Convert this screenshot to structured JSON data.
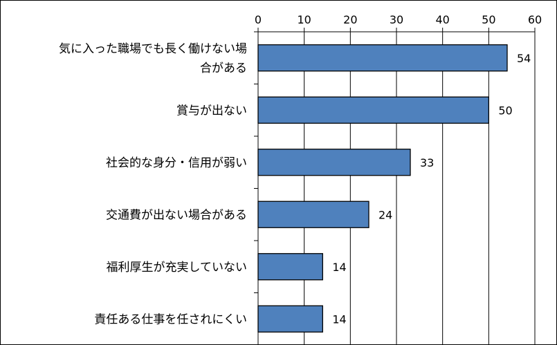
{
  "chart_data": {
    "type": "bar",
    "orientation": "horizontal",
    "title": "",
    "xlabel": "",
    "ylabel": "",
    "xlim": [
      0,
      60
    ],
    "x_ticks": [
      0,
      10,
      20,
      30,
      40,
      50,
      60
    ],
    "x_axis_position": "top",
    "grid": true,
    "legend": "none",
    "bar_color": "#4F81BD",
    "bar_edge_color": "#000000",
    "categories": [
      "気に入った職場でも長く働けない場合がある",
      "賞与が出ない",
      "社会的な身分・信用が弱い",
      "交通費が出ない場合がある",
      "福利厚生が充実していない",
      "責任ある仕事を任されにくい"
    ],
    "category_label_lines": [
      [
        "気に入った職場でも長く働けない場",
        "合がある"
      ],
      [
        "賞与が出ない"
      ],
      [
        "社会的な身分・信用が弱い"
      ],
      [
        "交通費が出ない場合がある"
      ],
      [
        "福利厚生が充実していない"
      ],
      [
        "責任ある仕事を任されにくい"
      ]
    ],
    "values": [
      54,
      50,
      33,
      24,
      14,
      14
    ],
    "data_labels": [
      "54",
      "50",
      "33",
      "24",
      "14",
      "14"
    ]
  }
}
